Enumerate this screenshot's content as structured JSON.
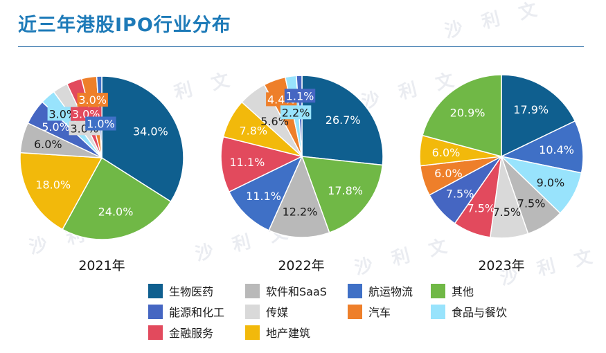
{
  "header": {
    "title": "近三年港股IPO行业分布"
  },
  "watermark": {
    "text": "沙 利 文"
  },
  "colors": {
    "生物医药": "#0f5f8f",
    "软件和SaaS": "#b9b9b9",
    "航运物流": "#3f70c6",
    "其他": "#70b846",
    "能源和化工": "#4566c2",
    "传媒": "#d9d9d9",
    "汽车": "#ee7f2a",
    "食品与餐饮": "#98e3fc",
    "金融服务": "#e24a5d",
    "地产建筑": "#f2b90b"
  },
  "legend": {
    "items": [
      "生物医药",
      "软件和SaaS",
      "航运物流",
      "其他",
      "能源和化工",
      "传媒",
      "汽车",
      "食品与餐饮",
      "金融服务",
      "地产建筑"
    ]
  },
  "chart_data": [
    {
      "type": "pie",
      "title": "2021年",
      "slices": [
        {
          "category": "生物医药",
          "label": "34.0%",
          "value": 34.0
        },
        {
          "category": "其他",
          "label": "24.0%",
          "value": 24.0
        },
        {
          "category": "地产建筑",
          "label": "18.0%",
          "value": 18.0
        },
        {
          "category": "软件和SaaS",
          "label": "6.0%",
          "value": 6.0
        },
        {
          "category": "能源和化工",
          "label": "5.0%",
          "value": 5.0
        },
        {
          "category": "食品与餐饮",
          "label": "3.0%",
          "value": 3.0
        },
        {
          "category": "传媒",
          "label": "3.0%",
          "value": 3.0
        },
        {
          "category": "金融服务",
          "label": "3.0%",
          "value": 3.0
        },
        {
          "category": "汽车",
          "label": "3.0%",
          "value": 3.0
        },
        {
          "category": "航运物流",
          "label": "1.0%",
          "value": 1.0
        }
      ]
    },
    {
      "type": "pie",
      "title": "2022年",
      "slices": [
        {
          "category": "生物医药",
          "label": "26.7%",
          "value": 26.7
        },
        {
          "category": "其他",
          "label": "17.8%",
          "value": 17.8
        },
        {
          "category": "软件和SaaS",
          "label": "12.2%",
          "value": 12.2
        },
        {
          "category": "航运物流",
          "label": "11.1%",
          "value": 11.1
        },
        {
          "category": "金融服务",
          "label": "11.1%",
          "value": 11.1
        },
        {
          "category": "地产建筑",
          "label": "7.8%",
          "value": 7.8
        },
        {
          "category": "传媒",
          "label": "5.6%",
          "value": 5.6
        },
        {
          "category": "汽车",
          "label": "4.4%",
          "value": 4.4
        },
        {
          "category": "食品与餐饮",
          "label": "2.2%",
          "value": 2.2
        },
        {
          "category": "能源和化工",
          "label": "1.1%",
          "value": 1.1
        }
      ]
    },
    {
      "type": "pie",
      "title": "2023年",
      "slices": [
        {
          "category": "生物医药",
          "label": "17.9%",
          "value": 17.9
        },
        {
          "category": "航运物流",
          "label": "10.4%",
          "value": 10.4
        },
        {
          "category": "食品与餐饮",
          "label": "9.0%",
          "value": 9.0
        },
        {
          "category": "软件和SaaS",
          "label": "7.5%",
          "value": 7.5
        },
        {
          "category": "传媒",
          "label": "7.5%",
          "value": 7.5
        },
        {
          "category": "金融服务",
          "label": "7.5%",
          "value": 7.5
        },
        {
          "category": "能源和化工",
          "label": "7.5%",
          "value": 7.5
        },
        {
          "category": "汽车",
          "label": "6.0%",
          "value": 6.0
        },
        {
          "category": "地产建筑",
          "label": "6.0%",
          "value": 6.0
        },
        {
          "category": "其他",
          "label": "20.9%",
          "value": 20.9
        }
      ]
    }
  ]
}
